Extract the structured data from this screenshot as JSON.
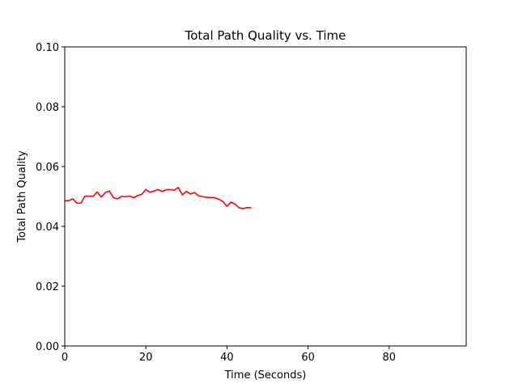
{
  "chart_data": {
    "type": "line",
    "title": "Total Path Quality vs. Time",
    "xlabel": "Time (Seconds)",
    "ylabel": "Total Path Quality",
    "xlim": [
      0,
      99
    ],
    "ylim": [
      0,
      0.1
    ],
    "xticks": [
      0,
      20,
      40,
      60,
      80
    ],
    "xtick_labels": [
      "0",
      "20",
      "40",
      "60",
      "80"
    ],
    "yticks": [
      0,
      0.02,
      0.04,
      0.06,
      0.08,
      0.1
    ],
    "ytick_labels": [
      "0.00",
      "0.02",
      "0.04",
      "0.06",
      "0.08",
      "0.10"
    ],
    "grid": false,
    "series": [
      {
        "color": "#ff0000",
        "x": [
          0,
          1,
          2,
          3,
          4,
          5,
          6,
          7,
          8,
          9,
          10,
          11,
          12,
          13,
          14,
          15,
          16,
          17,
          18,
          19,
          20,
          21,
          22,
          23,
          24,
          25,
          26,
          27,
          28,
          29,
          30,
          31,
          32,
          33,
          34,
          35,
          36,
          37,
          38,
          39,
          40,
          41,
          42,
          43,
          44,
          45,
          46
        ],
        "y": [
          0.0485,
          0.0486,
          0.0492,
          0.0477,
          0.0478,
          0.0501,
          0.0501,
          0.05,
          0.0515,
          0.0498,
          0.0513,
          0.0518,
          0.0496,
          0.0492,
          0.05,
          0.0499,
          0.0501,
          0.0496,
          0.0503,
          0.0507,
          0.0523,
          0.0514,
          0.0518,
          0.0523,
          0.0517,
          0.0522,
          0.0523,
          0.0521,
          0.053,
          0.0505,
          0.0517,
          0.0508,
          0.0513,
          0.0502,
          0.0499,
          0.0497,
          0.0496,
          0.0496,
          0.049,
          0.0483,
          0.0467,
          0.0481,
          0.0474,
          0.0462,
          0.0459,
          0.0463,
          0.0462
        ]
      }
    ]
  }
}
